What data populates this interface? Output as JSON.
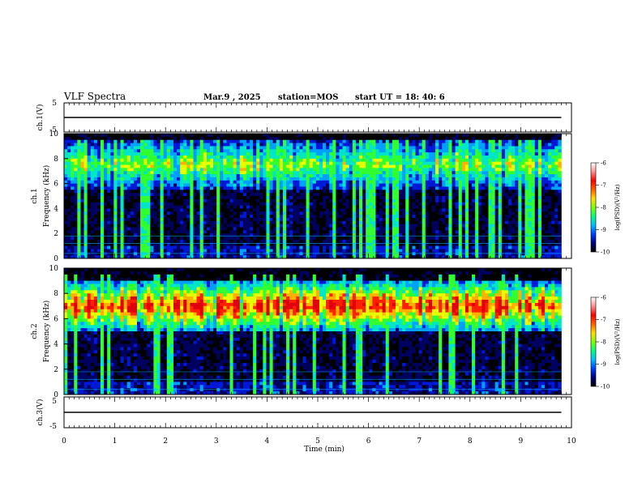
{
  "header": {
    "title": "VLF Spectra",
    "date": "Mar.9 , 2025",
    "station": "station=MOS",
    "start_ut": "start UT = 18: 40: 6"
  },
  "chart_data": [
    {
      "id": "ch1-voltage",
      "type": "line",
      "ylabel": "ch.1(V)",
      "ylim": [
        -5,
        5
      ],
      "yticks": [
        "5",
        "-5"
      ],
      "x": [
        0,
        9.8
      ],
      "y": [
        0.0,
        0.0
      ]
    },
    {
      "id": "ch1-spectrogram",
      "type": "heatmap",
      "ylabel": "ch.1\nFrequency (kHz)",
      "ylim": [
        0,
        10
      ],
      "yticks": [
        "0",
        "2",
        "4",
        "6",
        "8",
        "10"
      ],
      "xlim": [
        0,
        10
      ],
      "data_extent_x": [
        0,
        9.8
      ],
      "dominant_band_khz": [
        5.5,
        9.5
      ],
      "colorbar": {
        "label": "log(PSD)(V²/Hz)",
        "range": [
          -10,
          -6
        ],
        "ticks": [
          "-6",
          "-7",
          "-8",
          "-9",
          "-10"
        ]
      }
    },
    {
      "id": "ch2-spectrogram",
      "type": "heatmap",
      "ylabel": "ch.2\nFrequency (kHz)",
      "ylim": [
        0,
        10
      ],
      "yticks": [
        "0",
        "2",
        "4",
        "6",
        "8",
        "10"
      ],
      "xlim": [
        0,
        10
      ],
      "data_extent_x": [
        0,
        9.8
      ],
      "dominant_band_khz": [
        5,
        9
      ],
      "colorbar": {
        "label": "log(PSD)(V²/Hz)",
        "range": [
          -10,
          -6
        ],
        "ticks": [
          "-6",
          "-7",
          "-8",
          "-9",
          "-10"
        ]
      }
    },
    {
      "id": "ch3-voltage",
      "type": "line",
      "ylabel": "ch.3(V)",
      "ylim": [
        -5,
        5
      ],
      "yticks": [
        "5",
        "-5"
      ],
      "x": [
        0,
        9.8
      ],
      "y": [
        0.0,
        0.0
      ]
    }
  ],
  "xaxis": {
    "label": "Time (min)",
    "ticks": [
      "0",
      "1",
      "2",
      "3",
      "4",
      "5",
      "6",
      "7",
      "8",
      "9",
      "10"
    ]
  },
  "colors": {
    "ink": "#000000",
    "colormap": [
      "#000000",
      "#000060",
      "#0018d8",
      "#00a0ff",
      "#00e6c8",
      "#30ff30",
      "#e6ff00",
      "#ffb000",
      "#ff2000",
      "#e00010",
      "#ffffff"
    ]
  }
}
